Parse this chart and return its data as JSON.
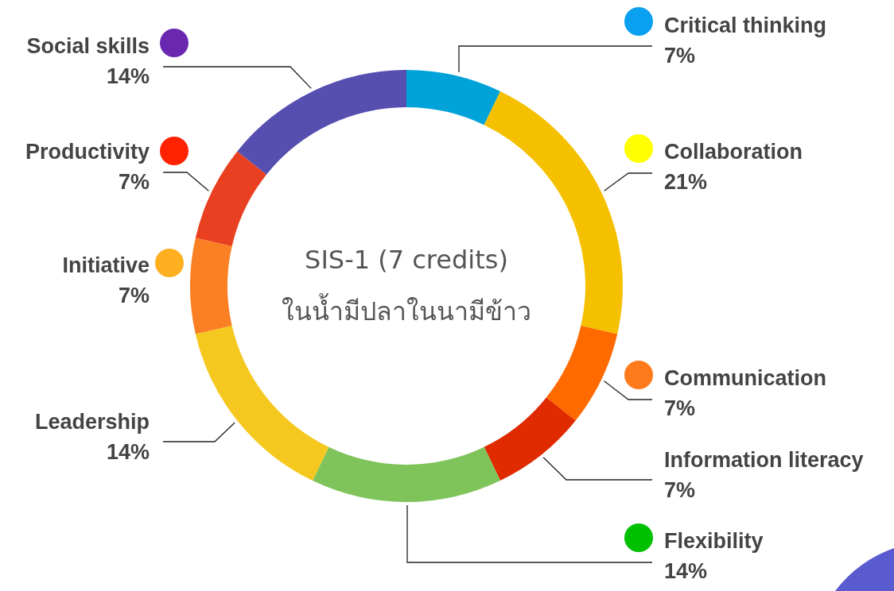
{
  "chart_data": {
    "type": "donut",
    "title": "SIS-1 (7 credits)",
    "subtitle": "ในน้ำมีปลาในนามีข้าว",
    "categories": [
      "Critical thinking",
      "Collaboration",
      "Communication",
      "Information literacy",
      "Flexibility",
      "Leadership",
      "Initiative",
      "Productivity",
      "Social skills"
    ],
    "values": [
      7,
      21,
      7,
      7,
      14,
      14,
      7,
      7,
      14
    ],
    "colors": [
      "#00a3d9",
      "#f5c000",
      "#ff6a00",
      "#e02a00",
      "#7fc45a",
      "#f5c820",
      "#fb7f23",
      "#e84020",
      "#574fb0"
    ],
    "value_labels": [
      "7%",
      "21%",
      "7%",
      "7%",
      "14%",
      "14%",
      "7%",
      "7%",
      "14%"
    ]
  }
}
